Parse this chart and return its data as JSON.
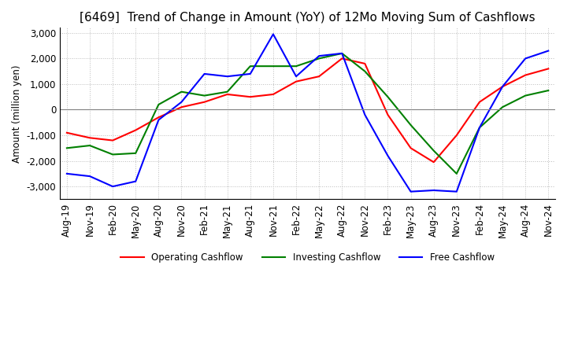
{
  "title": "[6469]  Trend of Change in Amount (YoY) of 12Mo Moving Sum of Cashflows",
  "ylabel": "Amount (million yen)",
  "ylim": [
    -3500,
    3200
  ],
  "yticks": [
    -3000,
    -2000,
    -1000,
    0,
    1000,
    2000,
    3000
  ],
  "line_colors": {
    "operating": "#FF0000",
    "investing": "#008000",
    "free": "#0000FF"
  },
  "legend_labels": [
    "Operating Cashflow",
    "Investing Cashflow",
    "Free Cashflow"
  ],
  "x_labels": [
    "Aug-19",
    "Nov-19",
    "Feb-20",
    "May-20",
    "Aug-20",
    "Nov-20",
    "Feb-21",
    "May-21",
    "Aug-21",
    "Nov-21",
    "Feb-22",
    "May-22",
    "Aug-22",
    "Nov-22",
    "Feb-23",
    "May-23",
    "Aug-23",
    "Nov-23",
    "Feb-24",
    "May-24",
    "Aug-24",
    "Nov-24"
  ],
  "operating": [
    -900,
    -1100,
    -1200,
    -800,
    -300,
    100,
    300,
    600,
    500,
    600,
    1100,
    1300,
    2000,
    1800,
    -200,
    -1500,
    -2050,
    -1000,
    300,
    900,
    1350,
    1600
  ],
  "investing": [
    -1500,
    -1400,
    -1750,
    -1700,
    200,
    700,
    550,
    700,
    1700,
    1700,
    1700,
    2000,
    2200,
    1500,
    500,
    -600,
    -1600,
    -2500,
    -700,
    100,
    550,
    750
  ],
  "free": [
    -2500,
    -2600,
    -3000,
    -2800,
    -400,
    300,
    1400,
    1300,
    1400,
    2950,
    1300,
    2100,
    2200,
    -200,
    -1800,
    -3200,
    -3150,
    -3200,
    -700,
    900,
    2000,
    2300
  ],
  "background_color": "#ffffff",
  "grid_color": "#bbbbbb",
  "title_fontsize": 11,
  "label_fontsize": 8.5
}
